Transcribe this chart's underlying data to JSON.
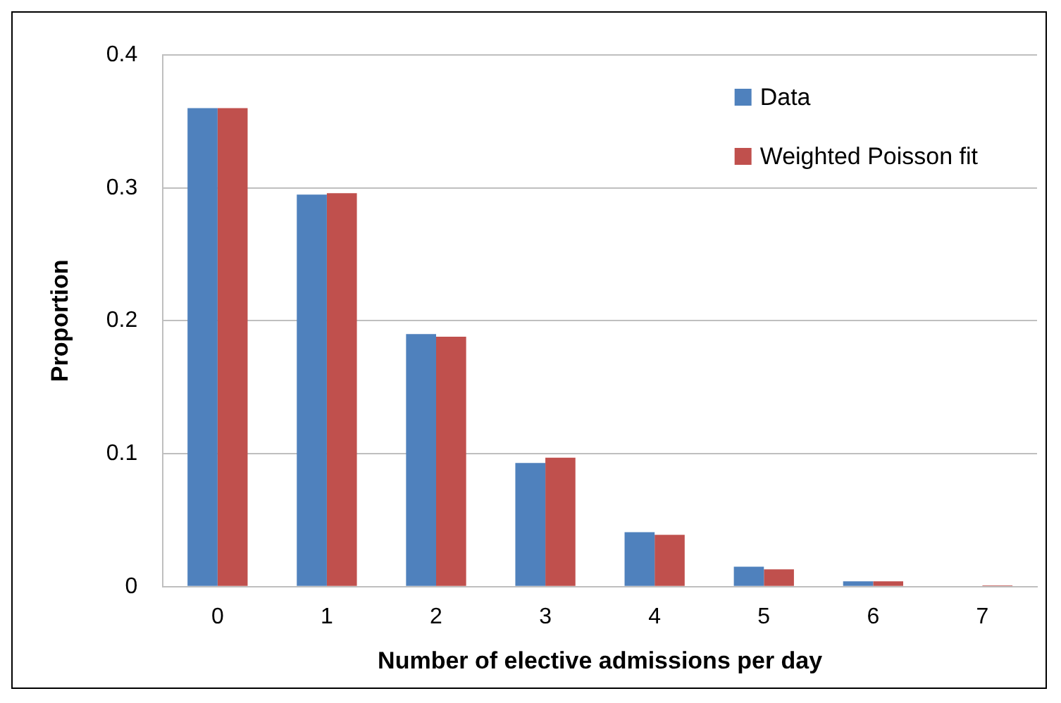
{
  "chart_data": {
    "type": "bar",
    "xlabel": "Number of elective admissions per day",
    "ylabel": "Proportion",
    "categories": [
      "0",
      "1",
      "2",
      "3",
      "4",
      "5",
      "6",
      "7"
    ],
    "series": [
      {
        "name": "Data",
        "color": "#4f81bd",
        "values": [
          0.36,
          0.295,
          0.19,
          0.093,
          0.041,
          0.015,
          0.004,
          0
        ]
      },
      {
        "name": "Weighted Poisson fit",
        "color": "#c0504d",
        "values": [
          0.36,
          0.296,
          0.188,
          0.097,
          0.039,
          0.013,
          0.004,
          0.001
        ]
      }
    ],
    "ylim": [
      0,
      0.4
    ],
    "yticks": [
      0,
      0.1,
      0.2,
      0.3,
      0.4
    ],
    "grid": "y",
    "legend": "top right"
  }
}
